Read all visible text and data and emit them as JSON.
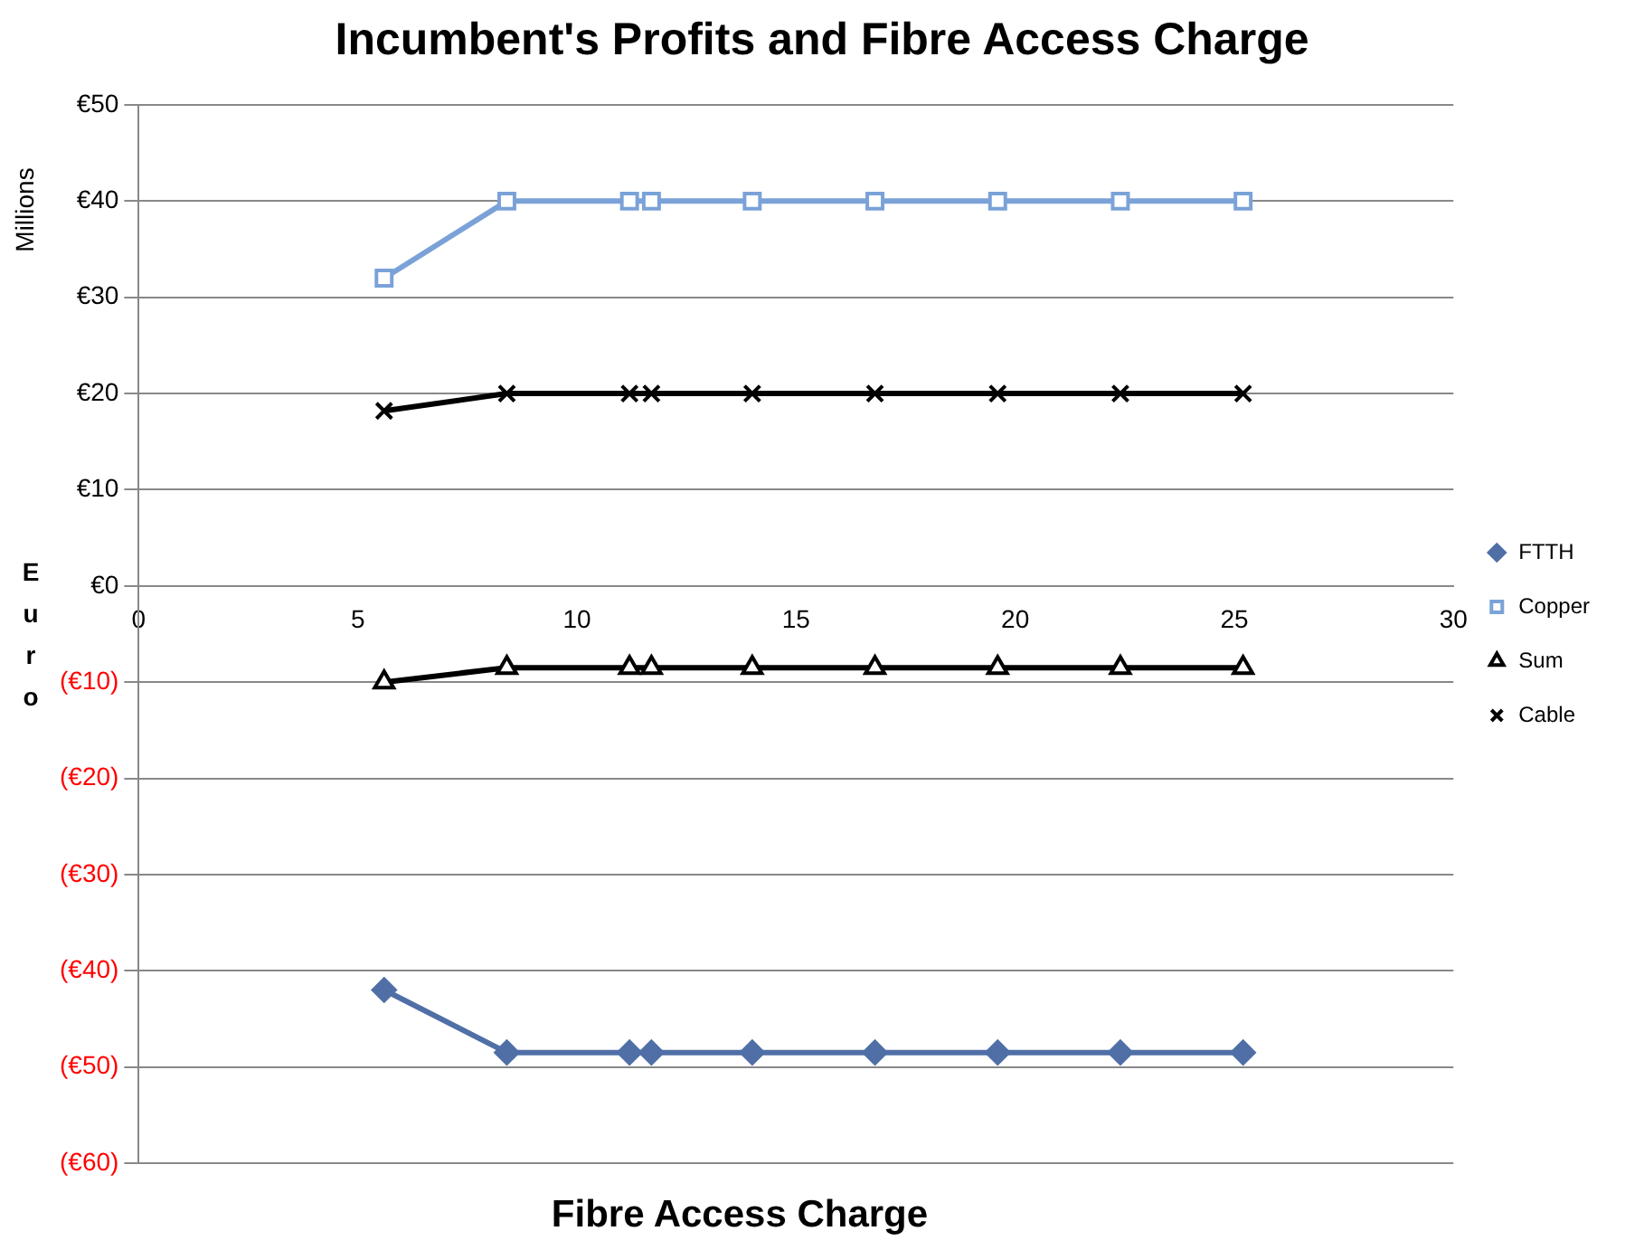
{
  "chart_data": {
    "type": "line",
    "title": "Incumbent's Profits and Fibre Access Charge",
    "xlabel": "Fibre Access Charge",
    "ylabel": "Euro",
    "annotations": [
      "Millions"
    ],
    "xlim": [
      0,
      30
    ],
    "xticks": [
      0,
      5,
      10,
      15,
      20,
      25,
      30
    ],
    "ylim": [
      -60,
      50
    ],
    "yticks": [
      {
        "value": 50,
        "label": "€50"
      },
      {
        "value": 40,
        "label": "€40"
      },
      {
        "value": 30,
        "label": "€30"
      },
      {
        "value": 20,
        "label": "€20"
      },
      {
        "value": 10,
        "label": "€10"
      },
      {
        "value": 0,
        "label": "€0"
      },
      {
        "value": -10,
        "label": "(€10)"
      },
      {
        "value": -20,
        "label": "(€20)"
      },
      {
        "value": -30,
        "label": "(€30)"
      },
      {
        "value": -40,
        "label": "(€40)"
      },
      {
        "value": -50,
        "label": "(€50)"
      },
      {
        "value": -60,
        "label": "(€60)"
      }
    ],
    "grid": "y",
    "legend": "right",
    "x": [
      5.6,
      8.4,
      11.2,
      11.7,
      14,
      16.8,
      19.6,
      22.4,
      25.2
    ],
    "series": [
      {
        "name": "FTTH",
        "color": "#4f6fa6",
        "marker": "diamond",
        "values": [
          -42,
          -48.5,
          -48.5,
          -48.5,
          -48.5,
          -48.5,
          -48.5,
          -48.5,
          -48.5
        ]
      },
      {
        "name": "Copper",
        "color": "#7ba2d8",
        "marker": "square",
        "values": [
          32,
          40,
          40,
          40,
          40,
          40,
          40,
          40,
          40
        ]
      },
      {
        "name": "Sum",
        "color": "#000000",
        "marker": "triangle",
        "values": [
          -10,
          -8.5,
          -8.5,
          -8.5,
          -8.5,
          -8.5,
          -8.5,
          -8.5,
          -8.5
        ]
      },
      {
        "name": "Cable",
        "color": "#000000",
        "marker": "cross",
        "values": [
          18.2,
          20,
          20,
          20,
          20,
          20,
          20,
          20,
          20
        ]
      }
    ]
  }
}
